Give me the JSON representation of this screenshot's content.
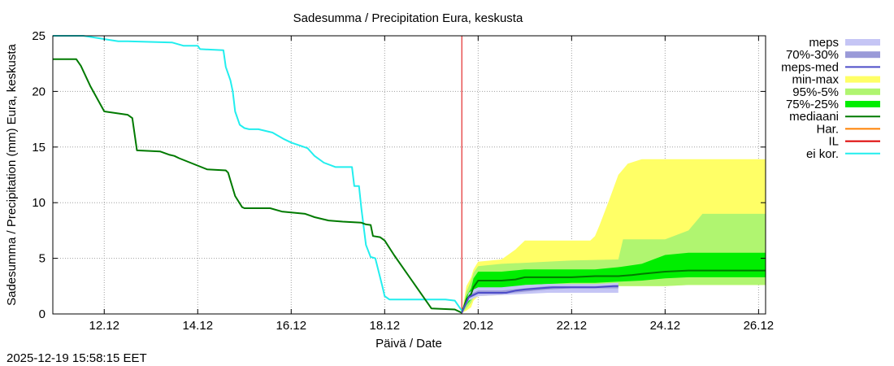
{
  "chart_data": {
    "type": "area",
    "title": "Sadesumma / Precipitation  Eura, keskusta",
    "xlabel": "Päivä / Date",
    "ylabel": "Sadesumma / Precipitation (mm)  Eura, keskusta",
    "xlim": [
      10.9,
      26.15
    ],
    "ylim": [
      0,
      25
    ],
    "grid": true,
    "x_ticks": [
      {
        "x": 12,
        "label": "12.12"
      },
      {
        "x": 14,
        "label": "14.12"
      },
      {
        "x": 16,
        "label": "16.12"
      },
      {
        "x": 18,
        "label": "18.12"
      },
      {
        "x": 20,
        "label": "20.12"
      },
      {
        "x": 22,
        "label": "22.12"
      },
      {
        "x": 24,
        "label": "24.12"
      },
      {
        "x": 26,
        "label": "26.12"
      }
    ],
    "y_ticks": [
      0,
      5,
      10,
      15,
      20,
      25
    ],
    "now_x": 19.65,
    "timestamp": "2025-12-19 15:58:15 EET",
    "legend": [
      {
        "label": "meps",
        "color": "#c5c5f5",
        "kind": "band"
      },
      {
        "label": "70%-30%",
        "color": "#9a9ad8",
        "kind": "band"
      },
      {
        "label": "meps-med",
        "color": "#4d4dc8",
        "kind": "line"
      },
      {
        "label": "min-max",
        "color": "#ffff66",
        "kind": "band"
      },
      {
        "label": "95%-5%",
        "color": "#b0f570",
        "kind": "band"
      },
      {
        "label": "75%-25%",
        "color": "#00ee00",
        "kind": "band"
      },
      {
        "label": "mediaani",
        "color": "#007a00",
        "kind": "line"
      },
      {
        "label": "Har.",
        "color": "#ff8000",
        "kind": "line"
      },
      {
        "label": "IL",
        "color": "#dd0000",
        "kind": "line"
      },
      {
        "label": "ei kor.",
        "color": "#22eeee",
        "kind": "line"
      }
    ],
    "series": [
      {
        "name": "ei kor.",
        "role": "history",
        "color": "#22eeee",
        "x": [
          10.9,
          11.55,
          12.3,
          12.5,
          13.45,
          13.7,
          14.0,
          14.05,
          14.55,
          14.6,
          14.7,
          14.75,
          14.8,
          14.9,
          15.0,
          15.1,
          15.2,
          15.3,
          15.6,
          15.85,
          16.0,
          16.35,
          16.5,
          16.7,
          16.95,
          17.1,
          17.3,
          17.35,
          17.45,
          17.5,
          17.6,
          17.7,
          17.72,
          17.8,
          17.95,
          18.0,
          18.1,
          18.2,
          18.5,
          19.0,
          19.3,
          19.5,
          19.65
        ],
        "y": [
          25,
          25,
          24.5,
          24.5,
          24.4,
          24.1,
          24.1,
          23.8,
          23.7,
          22.2,
          21.0,
          20.0,
          18.2,
          17.0,
          16.7,
          16.6,
          16.6,
          16.6,
          16.3,
          15.7,
          15.4,
          14.9,
          14.2,
          13.6,
          13.2,
          13.2,
          13.2,
          11.5,
          11.5,
          9.5,
          6.2,
          5.1,
          5.1,
          5.0,
          2.5,
          1.6,
          1.3,
          1.3,
          1.3,
          1.3,
          1.3,
          1.2,
          0.3
        ]
      },
      {
        "name": "mediaani",
        "role": "history",
        "color": "#007a00",
        "x": [
          10.9,
          11.4,
          11.5,
          11.7,
          12.0,
          12.5,
          12.6,
          12.7,
          13.2,
          13.4,
          13.5,
          13.6,
          14.2,
          14.6,
          14.65,
          14.7,
          14.8,
          14.95,
          15.0,
          15.55,
          15.8,
          16.3,
          16.5,
          16.8,
          17.1,
          17.3,
          17.5,
          17.6,
          17.7,
          17.75,
          17.9,
          18.0,
          18.2,
          19.0,
          19.5,
          19.65
        ],
        "y": [
          22.9,
          22.9,
          22.3,
          20.5,
          18.2,
          17.9,
          17.6,
          14.7,
          14.6,
          14.3,
          14.2,
          14.0,
          13.0,
          12.9,
          12.7,
          12.0,
          10.6,
          9.6,
          9.5,
          9.5,
          9.2,
          9.0,
          8.7,
          8.4,
          8.3,
          8.25,
          8.2,
          8.05,
          8.0,
          7.0,
          6.9,
          6.6,
          5.3,
          0.5,
          0.4,
          0.1
        ]
      },
      {
        "name": "mediaani",
        "role": "forecast",
        "color": "#007a00",
        "x": [
          19.65,
          19.75,
          19.85,
          19.9,
          20.0,
          20.1,
          20.5,
          20.8,
          21.0,
          21.5,
          22.0,
          22.5,
          23.0,
          23.3,
          23.5,
          24.0,
          24.5,
          25.0,
          25.5,
          26.15
        ],
        "y": [
          0.1,
          1.3,
          1.8,
          2.4,
          3.0,
          3.0,
          3.0,
          3.1,
          3.3,
          3.3,
          3.3,
          3.4,
          3.4,
          3.5,
          3.6,
          3.8,
          3.9,
          3.9,
          3.9,
          3.9
        ]
      },
      {
        "name": "meps-med",
        "role": "forecast",
        "color": "#4d4dc8",
        "x": [
          19.65,
          19.8,
          19.9,
          20.0,
          20.3,
          20.6,
          20.8,
          21.0,
          21.3,
          21.6,
          22.0,
          22.5,
          22.9,
          23.0
        ],
        "y": [
          0.1,
          1.5,
          1.7,
          1.9,
          1.9,
          1.9,
          2.1,
          2.2,
          2.3,
          2.4,
          2.4,
          2.4,
          2.5,
          2.5
        ]
      }
    ],
    "bands": [
      {
        "name": "min-max",
        "color": "#ffff66",
        "x": [
          19.65,
          19.75,
          19.85,
          19.9,
          20.0,
          20.5,
          20.8,
          21.0,
          21.5,
          22.0,
          22.4,
          22.5,
          22.6,
          22.8,
          23.0,
          23.2,
          23.5,
          24.0,
          24.5,
          25.0,
          25.5,
          26.15
        ],
        "lo": [
          0.1,
          0.3,
          0.6,
          1.2,
          1.6,
          1.7,
          1.8,
          2.0,
          2.2,
          2.3,
          2.4,
          2.4,
          2.5,
          2.5,
          2.5,
          2.5,
          2.5,
          2.5,
          2.6,
          2.6,
          2.6,
          2.6
        ],
        "hi": [
          0.1,
          2.5,
          3.3,
          4.0,
          4.7,
          4.9,
          5.8,
          6.6,
          6.6,
          6.6,
          6.6,
          7.0,
          8.0,
          10.2,
          12.5,
          13.5,
          13.9,
          13.9,
          13.9,
          13.9,
          13.9,
          13.9
        ]
      },
      {
        "name": "95%-5%",
        "color": "#b0f570",
        "x": [
          19.65,
          19.75,
          19.85,
          19.9,
          20.0,
          20.5,
          21.0,
          22.0,
          23.0,
          23.1,
          24.0,
          24.5,
          24.8,
          25.5,
          26.15
        ],
        "lo": [
          0.1,
          0.5,
          1.0,
          1.5,
          1.8,
          1.9,
          2.1,
          2.3,
          2.5,
          2.5,
          2.5,
          2.6,
          2.6,
          2.6,
          2.6
        ],
        "hi": [
          0.1,
          2.0,
          3.0,
          3.7,
          4.3,
          4.5,
          4.6,
          4.8,
          4.9,
          6.7,
          6.7,
          7.5,
          9.0,
          9.0,
          9.0
        ]
      },
      {
        "name": "75%-25%",
        "color": "#00ee00",
        "x": [
          19.65,
          19.75,
          19.85,
          19.9,
          20.0,
          20.5,
          21.0,
          21.5,
          22.0,
          22.5,
          23.0,
          23.5,
          24.0,
          24.5,
          25.0,
          26.15
        ],
        "lo": [
          0.1,
          0.8,
          1.3,
          2.0,
          2.2,
          2.3,
          2.6,
          2.7,
          2.8,
          2.8,
          2.9,
          3.0,
          3.2,
          3.3,
          3.3,
          3.3
        ],
        "hi": [
          0.1,
          1.6,
          2.3,
          3.2,
          3.8,
          3.8,
          4.0,
          4.0,
          4.0,
          4.0,
          4.2,
          4.5,
          5.3,
          5.5,
          5.5,
          5.5
        ]
      },
      {
        "name": "meps",
        "color": "#c5c5f5",
        "x": [
          19.65,
          19.8,
          19.9,
          20.0,
          20.5,
          21.0,
          21.5,
          22.0,
          22.5,
          23.0
        ],
        "lo": [
          0.1,
          1.2,
          1.4,
          1.6,
          1.7,
          1.8,
          1.9,
          1.9,
          1.9,
          1.9
        ],
        "hi": [
          0.1,
          1.9,
          2.2,
          2.4,
          2.4,
          2.6,
          2.7,
          2.7,
          2.7,
          2.8
        ]
      },
      {
        "name": "70%-30%",
        "color": "#9a9ad8",
        "x": [
          19.65,
          19.8,
          19.9,
          20.0,
          20.5,
          21.0,
          21.5,
          22.0,
          22.5,
          23.0
        ],
        "lo": [
          0.1,
          1.4,
          1.6,
          1.8,
          1.8,
          2.0,
          2.2,
          2.3,
          2.3,
          2.3
        ],
        "hi": [
          0.1,
          1.7,
          1.9,
          2.1,
          2.1,
          2.3,
          2.5,
          2.5,
          2.5,
          2.6
        ]
      }
    ]
  }
}
